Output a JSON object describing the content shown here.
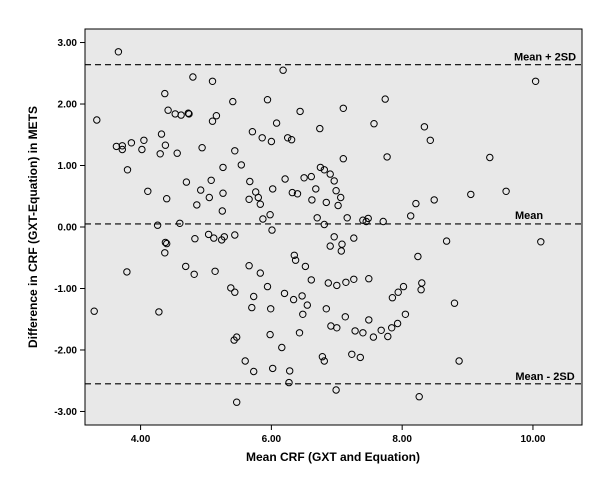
{
  "chart_data": {
    "type": "scatter",
    "title": "",
    "xlabel": "Mean CRF (GXT and Equation)",
    "ylabel": "Difference in CRF (GXT-Equation) in METS",
    "xlim": [
      3.15,
      10.75
    ],
    "ylim": [
      -3.22,
      3.22
    ],
    "x_ticks": [
      4.0,
      6.0,
      8.0,
      10.0
    ],
    "x_tick_labels": [
      "4.00",
      "6.00",
      "8.00",
      "10.00"
    ],
    "y_ticks": [
      3.0,
      2.0,
      1.0,
      0.0,
      -1.0,
      -2.0,
      -3.0
    ],
    "y_tick_labels": [
      "3.00",
      "2.00",
      "1.00",
      "0.00",
      "-1.00",
      "-2.00",
      "-3.00"
    ],
    "grid": false,
    "background_color": "#e8e8e8",
    "marker": "open-circle",
    "reference_lines": [
      {
        "label": "Mean + 2SD",
        "y": 2.64
      },
      {
        "label": "Mean",
        "y": 0.05
      },
      {
        "label": "Mean - 2SD",
        "y": -2.55
      }
    ],
    "points": [
      [
        3.66,
        2.85
      ],
      [
        3.33,
        1.74
      ],
      [
        3.63,
        1.31
      ],
      [
        3.72,
        1.32
      ],
      [
        3.72,
        1.26
      ],
      [
        3.86,
        1.37
      ],
      [
        3.8,
        0.93
      ],
      [
        4.05,
        1.41
      ],
      [
        4.02,
        1.26
      ],
      [
        4.32,
        1.51
      ],
      [
        4.42,
        1.9
      ],
      [
        4.53,
        1.84
      ],
      [
        4.37,
        2.17
      ],
      [
        4.74,
        1.84
      ],
      [
        4.8,
        2.44
      ],
      [
        5.1,
        2.37
      ],
      [
        5.16,
        1.81
      ],
      [
        5.1,
        1.72
      ],
      [
        4.94,
        1.29
      ],
      [
        4.62,
        1.82
      ],
      [
        4.73,
        1.85
      ],
      [
        4.38,
        1.33
      ],
      [
        4.3,
        1.19
      ],
      [
        4.56,
        1.2
      ],
      [
        5.41,
        2.04
      ],
      [
        5.94,
        2.07
      ],
      [
        6.18,
        2.55
      ],
      [
        5.71,
        1.55
      ],
      [
        5.86,
        1.45
      ],
      [
        6.0,
        1.39
      ],
      [
        6.08,
        1.69
      ],
      [
        6.25,
        1.45
      ],
      [
        6.44,
        1.88
      ],
      [
        6.31,
        1.42
      ],
      [
        6.74,
        1.6
      ],
      [
        7.1,
        1.93
      ],
      [
        7.57,
        1.68
      ],
      [
        7.74,
        2.08
      ],
      [
        8.34,
        1.63
      ],
      [
        8.43,
        1.41
      ],
      [
        10.04,
        2.37
      ],
      [
        7.77,
        1.14
      ],
      [
        7.1,
        1.11
      ],
      [
        9.34,
        1.13
      ],
      [
        4.11,
        0.58
      ],
      [
        4.4,
        0.46
      ],
      [
        4.7,
        0.73
      ],
      [
        4.92,
        0.6
      ],
      [
        5.08,
        0.76
      ],
      [
        5.26,
        0.97
      ],
      [
        5.44,
        1.24
      ],
      [
        5.54,
        1.01
      ],
      [
        5.67,
        0.74
      ],
      [
        5.76,
        0.57
      ],
      [
        5.66,
        0.45
      ],
      [
        5.83,
        0.37
      ],
      [
        5.87,
        0.13
      ],
      [
        5.98,
        0.2
      ],
      [
        6.02,
        0.62
      ],
      [
        6.21,
        0.78
      ],
      [
        6.32,
        0.56
      ],
      [
        6.4,
        0.54
      ],
      [
        6.5,
        0.8
      ],
      [
        6.61,
        0.82
      ],
      [
        6.75,
        0.97
      ],
      [
        6.81,
        0.93
      ],
      [
        6.9,
        0.86
      ],
      [
        6.96,
        0.75
      ],
      [
        6.99,
        0.59
      ],
      [
        7.06,
        0.48
      ],
      [
        7.16,
        0.15
      ],
      [
        7.02,
        0.35
      ],
      [
        6.84,
        0.4
      ],
      [
        6.68,
        0.62
      ],
      [
        6.62,
        0.44
      ],
      [
        6.7,
        0.15
      ],
      [
        5.26,
        0.55
      ],
      [
        5.05,
        0.48
      ],
      [
        4.86,
        0.36
      ],
      [
        5.25,
        0.26
      ],
      [
        5.8,
        0.48
      ],
      [
        8.21,
        0.38
      ],
      [
        8.49,
        0.44
      ],
      [
        9.05,
        0.53
      ],
      [
        9.59,
        0.58
      ],
      [
        8.13,
        0.18
      ],
      [
        7.45,
        0.09
      ],
      [
        7.71,
        0.09
      ],
      [
        4.26,
        0.03
      ],
      [
        4.6,
        0.06
      ],
      [
        4.38,
        -0.25
      ],
      [
        4.37,
        -0.42
      ],
      [
        4.4,
        -0.27
      ],
      [
        4.83,
        -0.19
      ],
      [
        5.04,
        -0.12
      ],
      [
        5.12,
        -0.18
      ],
      [
        5.24,
        -0.21
      ],
      [
        5.28,
        -0.16
      ],
      [
        5.44,
        -0.13
      ],
      [
        3.79,
        -0.73
      ],
      [
        4.69,
        -0.64
      ],
      [
        4.82,
        -0.77
      ],
      [
        5.14,
        -0.72
      ],
      [
        6.01,
        -0.05
      ],
      [
        6.35,
        -0.46
      ],
      [
        6.52,
        -0.64
      ],
      [
        6.81,
        0.04
      ],
      [
        6.9,
        -0.31
      ],
      [
        7.07,
        -0.39
      ],
      [
        6.96,
        -0.16
      ],
      [
        7.08,
        -0.28
      ],
      [
        7.4,
        0.11
      ],
      [
        7.26,
        -0.18
      ],
      [
        7.48,
        0.14
      ],
      [
        8.24,
        -0.48
      ],
      [
        8.68,
        -0.23
      ],
      [
        10.12,
        -0.24
      ],
      [
        5.38,
        -0.99
      ],
      [
        5.44,
        -1.06
      ],
      [
        5.66,
        -0.63
      ],
      [
        5.73,
        -1.13
      ],
      [
        5.83,
        -0.75
      ],
      [
        5.94,
        -0.97
      ],
      [
        6.2,
        -1.08
      ],
      [
        6.37,
        -0.54
      ],
      [
        5.7,
        -1.31
      ],
      [
        5.99,
        -1.33
      ],
      [
        6.34,
        -1.18
      ],
      [
        6.47,
        -1.12
      ],
      [
        6.87,
        -0.91
      ],
      [
        7.0,
        -0.95
      ],
      [
        7.14,
        -0.9
      ],
      [
        7.26,
        -0.85
      ],
      [
        7.49,
        -0.84
      ],
      [
        6.61,
        -0.86
      ],
      [
        6.55,
        -1.27
      ],
      [
        6.48,
        -1.42
      ],
      [
        6.84,
        -1.33
      ],
      [
        6.91,
        -1.61
      ],
      [
        7.13,
        -1.46
      ],
      [
        7.28,
        -1.69
      ],
      [
        7.49,
        -1.51
      ],
      [
        7.68,
        -1.68
      ],
      [
        7.85,
        -1.15
      ],
      [
        7.94,
        -1.06
      ],
      [
        7.93,
        -1.57
      ],
      [
        7.84,
        -1.64
      ],
      [
        7.78,
        -1.78
      ],
      [
        8.02,
        -0.97
      ],
      [
        8.3,
        -0.91
      ],
      [
        8.29,
        -1.02
      ],
      [
        8.05,
        -1.42
      ],
      [
        8.8,
        -1.24
      ],
      [
        3.29,
        -1.37
      ],
      [
        4.28,
        -1.38
      ],
      [
        5.43,
        -1.84
      ],
      [
        5.47,
        -1.79
      ],
      [
        5.6,
        -2.18
      ],
      [
        5.98,
        -1.75
      ],
      [
        6.16,
        -1.96
      ],
      [
        6.43,
        -1.72
      ],
      [
        6.78,
        -2.11
      ],
      [
        6.81,
        -2.18
      ],
      [
        7.0,
        -1.64
      ],
      [
        7.4,
        -1.72
      ],
      [
        7.36,
        -2.12
      ],
      [
        7.56,
        -1.79
      ],
      [
        7.23,
        -2.07
      ],
      [
        5.73,
        -2.35
      ],
      [
        6.02,
        -2.3
      ],
      [
        6.28,
        -2.34
      ],
      [
        6.27,
        -2.53
      ],
      [
        6.99,
        -2.65
      ],
      [
        5.47,
        -2.85
      ],
      [
        8.26,
        -2.76
      ],
      [
        8.87,
        -2.18
      ]
    ]
  }
}
